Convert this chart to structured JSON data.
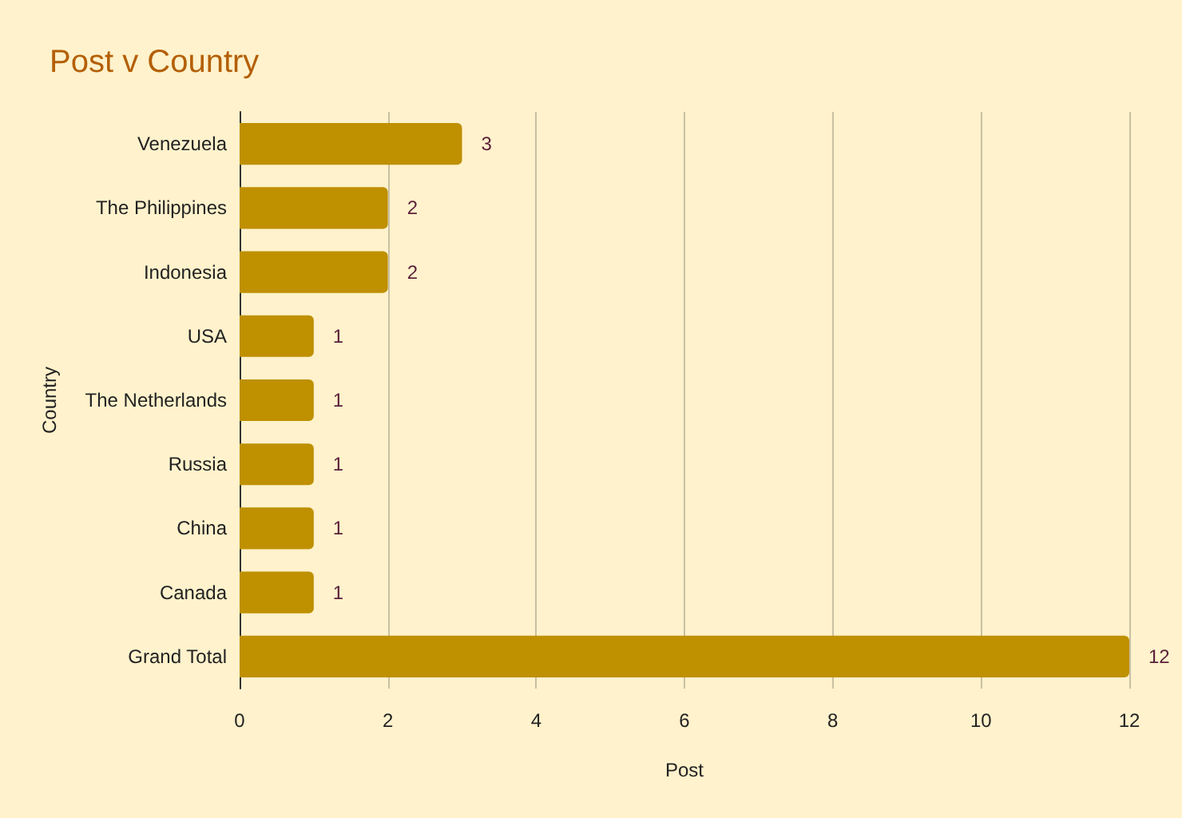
{
  "chart_data": {
    "type": "bar",
    "orientation": "horizontal",
    "title": "Post v Country",
    "xlabel": "Post",
    "ylabel": "Country",
    "categories": [
      "Venezuela",
      "The Philippines",
      "Indonesia",
      "USA",
      "The Netherlands",
      "Russia",
      "China",
      "Canada",
      "Grand Total"
    ],
    "values": [
      3,
      2,
      2,
      1,
      1,
      1,
      1,
      1,
      12
    ],
    "color": "#bf9000",
    "xlim": [
      0,
      12
    ],
    "xticks": [
      0,
      2,
      4,
      6,
      8,
      10,
      12
    ],
    "grid": "x",
    "data_labels": true
  }
}
